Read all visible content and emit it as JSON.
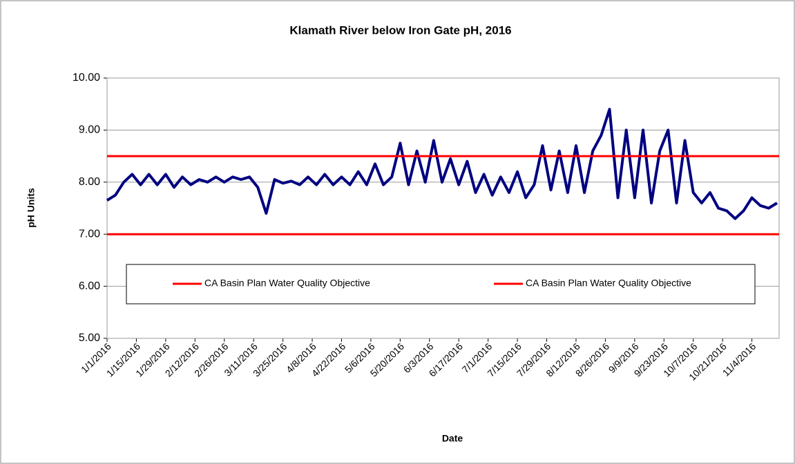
{
  "chart_data": {
    "type": "line",
    "title": "Klamath River below Iron Gate pH, 2016",
    "x_label": "Date",
    "y_label": "pH Units",
    "xlim": [
      "2016-01-01",
      "2016-11-17"
    ],
    "xticks": [
      {
        "value": "2016-01-01",
        "label": "1/1/2016"
      },
      {
        "value": "2016-01-15",
        "label": "1/15/2016"
      },
      {
        "value": "2016-01-29",
        "label": "1/29/2016"
      },
      {
        "value": "2016-02-12",
        "label": "2/12/2016"
      },
      {
        "value": "2016-02-26",
        "label": "2/26/2016"
      },
      {
        "value": "2016-03-11",
        "label": "3/11/2016"
      },
      {
        "value": "2016-03-25",
        "label": "3/25/2016"
      },
      {
        "value": "2016-04-08",
        "label": "4/8/2016"
      },
      {
        "value": "2016-04-22",
        "label": "4/22/2016"
      },
      {
        "value": "2016-05-06",
        "label": "5/6/2016"
      },
      {
        "value": "2016-05-20",
        "label": "5/20/2016"
      },
      {
        "value": "2016-06-03",
        "label": "6/3/2016"
      },
      {
        "value": "2016-06-17",
        "label": "6/17/2016"
      },
      {
        "value": "2016-07-01",
        "label": "7/1/2016"
      },
      {
        "value": "2016-07-15",
        "label": "7/15/2016"
      },
      {
        "value": "2016-07-29",
        "label": "7/29/2016"
      },
      {
        "value": "2016-08-12",
        "label": "8/12/2016"
      },
      {
        "value": "2016-08-26",
        "label": "8/26/2016"
      },
      {
        "value": "2016-09-09",
        "label": "9/9/2016"
      },
      {
        "value": "2016-09-23",
        "label": "9/23/2016"
      },
      {
        "value": "2016-10-07",
        "label": "10/7/2016"
      },
      {
        "value": "2016-10-21",
        "label": "10/21/2016"
      },
      {
        "value": "2016-11-04",
        "label": "11/4/2016"
      }
    ],
    "ylim": [
      5,
      10
    ],
    "yticks": [
      {
        "value": 5,
        "label": "5.00"
      },
      {
        "value": 6,
        "label": "6.00"
      },
      {
        "value": 7,
        "label": "7.00"
      },
      {
        "value": 8,
        "label": "8.00"
      },
      {
        "value": 9,
        "label": "9.00"
      },
      {
        "value": 10,
        "label": "10.00"
      }
    ],
    "grid": true,
    "series": [
      {
        "color": "#000080",
        "x": [
          "2016-01-01",
          "2016-01-05",
          "2016-01-09",
          "2016-01-13",
          "2016-01-17",
          "2016-01-21",
          "2016-01-25",
          "2016-01-29",
          "2016-02-02",
          "2016-02-06",
          "2016-02-10",
          "2016-02-14",
          "2016-02-18",
          "2016-02-22",
          "2016-02-26",
          "2016-03-01",
          "2016-03-05",
          "2016-03-09",
          "2016-03-13",
          "2016-03-17",
          "2016-03-21",
          "2016-03-25",
          "2016-03-29",
          "2016-04-02",
          "2016-04-06",
          "2016-04-10",
          "2016-04-14",
          "2016-04-18",
          "2016-04-22",
          "2016-04-26",
          "2016-04-30",
          "2016-05-04",
          "2016-05-08",
          "2016-05-12",
          "2016-05-16",
          "2016-05-20",
          "2016-05-24",
          "2016-05-28",
          "2016-06-01",
          "2016-06-05",
          "2016-06-09",
          "2016-06-13",
          "2016-06-17",
          "2016-06-21",
          "2016-06-25",
          "2016-06-29",
          "2016-07-03",
          "2016-07-07",
          "2016-07-11",
          "2016-07-15",
          "2016-07-19",
          "2016-07-23",
          "2016-07-27",
          "2016-07-31",
          "2016-08-04",
          "2016-08-08",
          "2016-08-12",
          "2016-08-16",
          "2016-08-20",
          "2016-08-24",
          "2016-08-28",
          "2016-09-01",
          "2016-09-05",
          "2016-09-09",
          "2016-09-13",
          "2016-09-17",
          "2016-09-21",
          "2016-09-25",
          "2016-09-29",
          "2016-10-03",
          "2016-10-07",
          "2016-10-11",
          "2016-10-15",
          "2016-10-19",
          "2016-10-23",
          "2016-10-27",
          "2016-10-31",
          "2016-11-04",
          "2016-11-08",
          "2016-11-12",
          "2016-11-16"
        ],
        "values": [
          7.65,
          7.75,
          8.0,
          8.15,
          7.95,
          8.15,
          7.95,
          8.15,
          7.9,
          8.1,
          7.95,
          8.05,
          8.0,
          8.1,
          8.0,
          8.1,
          8.05,
          8.1,
          7.9,
          7.4,
          8.05,
          7.98,
          8.02,
          7.95,
          8.1,
          7.95,
          8.15,
          7.95,
          8.1,
          7.95,
          8.2,
          7.95,
          8.35,
          7.95,
          8.1,
          8.75,
          7.95,
          8.6,
          8.0,
          8.8,
          8.0,
          8.45,
          7.95,
          8.4,
          7.8,
          8.15,
          7.75,
          8.1,
          7.8,
          8.2,
          7.7,
          7.95,
          8.7,
          7.85,
          8.6,
          7.8,
          8.7,
          7.8,
          8.6,
          8.9,
          9.4,
          7.7,
          9.0,
          7.7,
          9.0,
          7.6,
          8.6,
          9.0,
          7.6,
          8.8,
          7.8,
          7.6,
          7.8,
          7.5,
          7.45,
          7.3,
          7.45,
          7.7,
          7.55,
          7.5,
          7.6
        ]
      },
      {
        "name": "CA Basin Plan Water Quality Objective",
        "color": "#ff0000",
        "x": [
          "2016-01-01",
          "2016-11-17"
        ],
        "values": [
          8.5,
          8.5
        ]
      },
      {
        "name": "CA Basin Plan Water Quality Objective",
        "color": "#ff0000",
        "x": [
          "2016-01-01",
          "2016-11-17"
        ],
        "values": [
          7.0,
          7.0
        ]
      }
    ]
  }
}
